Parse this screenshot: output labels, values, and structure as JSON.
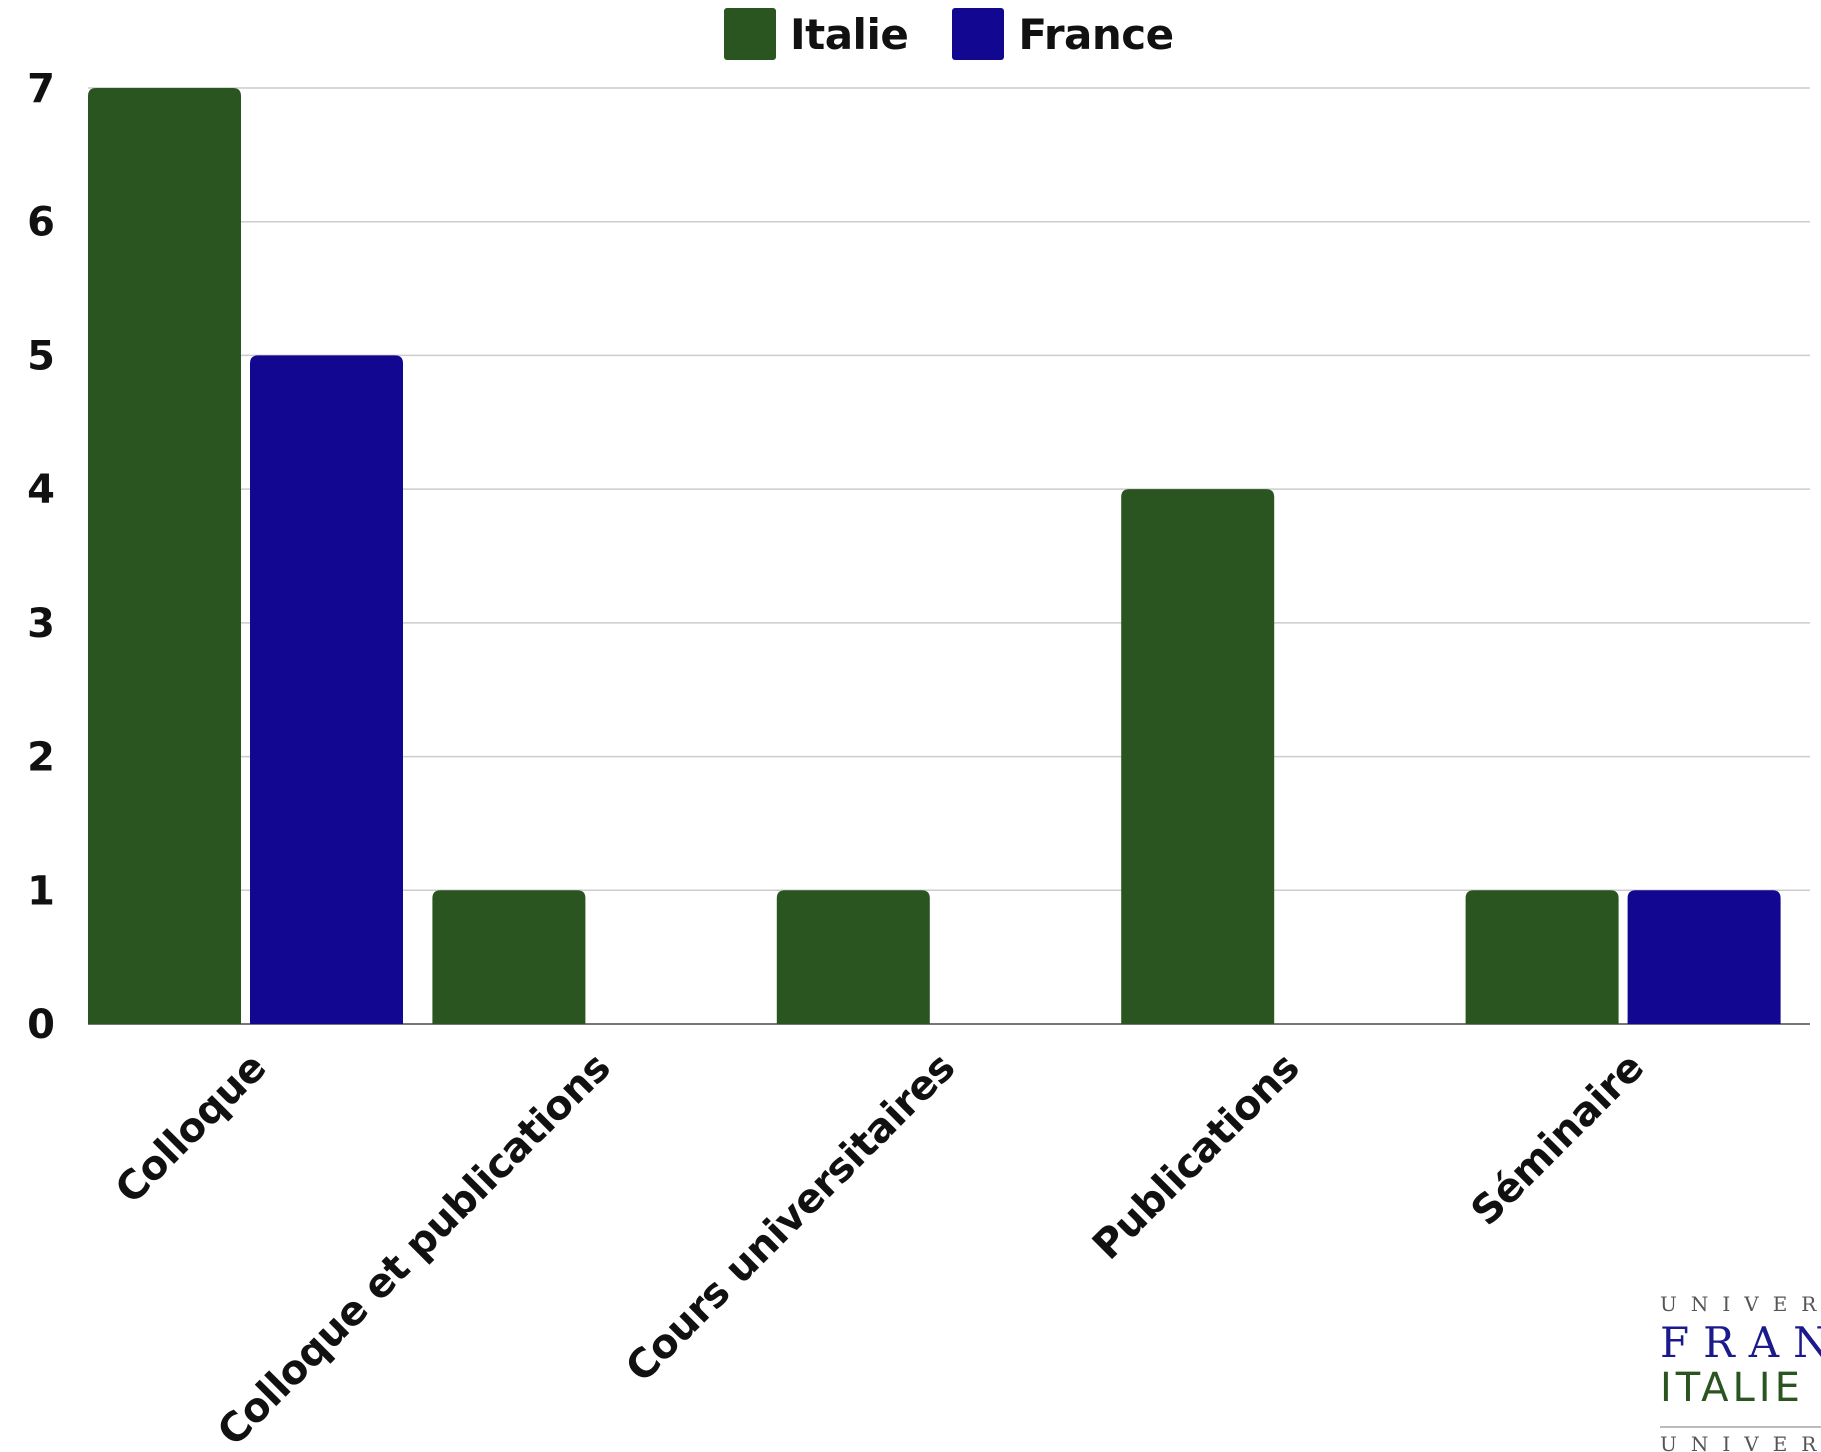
{
  "chart_data": {
    "type": "bar",
    "title": "",
    "xlabel": "",
    "ylabel": "",
    "categories": [
      "Colloque",
      "Colloque et publications",
      "Cours universitaires",
      "Publications",
      "Séminaire"
    ],
    "series": [
      {
        "name": "Italie",
        "color": "#2a5520",
        "values": [
          7,
          1,
          1,
          4,
          1
        ]
      },
      {
        "name": "France",
        "color": "#110790",
        "values": [
          5,
          0,
          0,
          0,
          1
        ]
      }
    ],
    "ylim": [
      0,
      7
    ],
    "yticks": [
      "0",
      "1",
      "2",
      "3",
      "4",
      "5",
      "6",
      "7"
    ],
    "grid": true,
    "legend_position": "top-center"
  },
  "logo": {
    "line1": "UNIVER",
    "line2": "FRAN",
    "line3": "ITALIE",
    "line4": "UNIVER"
  }
}
